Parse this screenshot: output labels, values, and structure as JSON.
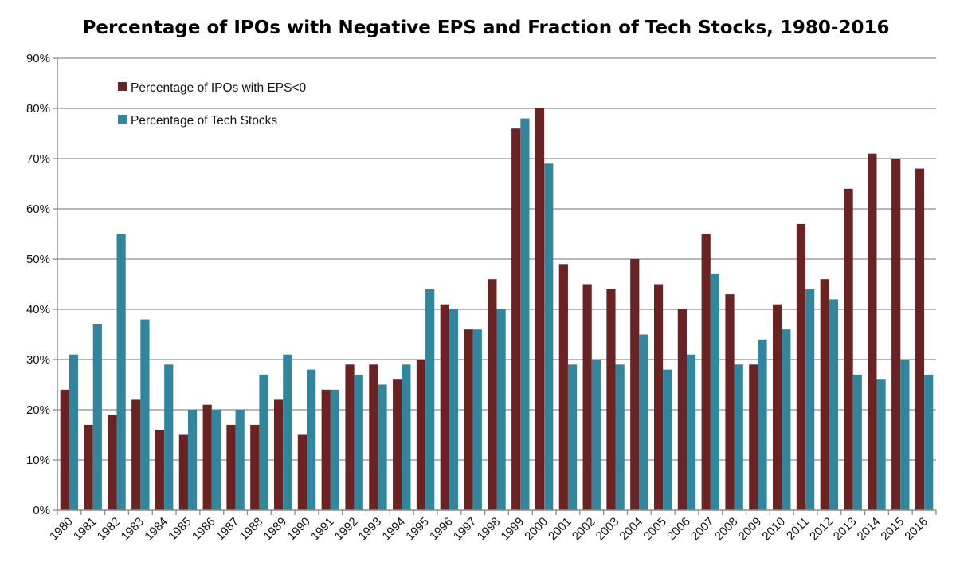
{
  "chart_data": {
    "type": "bar",
    "title": "Percentage of IPOs with Negative EPS and Fraction of Tech Stocks, 1980-2016",
    "xlabel": "",
    "ylabel": "",
    "ylim": [
      0,
      90
    ],
    "y_ticks": [
      0,
      10,
      20,
      30,
      40,
      50,
      60,
      70,
      80,
      90
    ],
    "y_tick_labels": [
      "0%",
      "10%",
      "20%",
      "30%",
      "40%",
      "50%",
      "60%",
      "70%",
      "80%",
      "90%"
    ],
    "grid": true,
    "legend_position": "top-left",
    "categories": [
      "1980",
      "1981",
      "1982",
      "1983",
      "1984",
      "1985",
      "1986",
      "1987",
      "1988",
      "1989",
      "1990",
      "1991",
      "1992",
      "1993",
      "1994",
      "1995",
      "1996",
      "1997",
      "1998",
      "1999",
      "2000",
      "2001",
      "2002",
      "2003",
      "2004",
      "2005",
      "2006",
      "2007",
      "2008",
      "2009",
      "2010",
      "2011",
      "2012",
      "2013",
      "2014",
      "2015",
      "2016"
    ],
    "series": [
      {
        "name": "Percentage of IPOs with EPS<0",
        "color": "#6b2222",
        "values": [
          24,
          17,
          19,
          22,
          16,
          15,
          21,
          17,
          17,
          22,
          15,
          24,
          29,
          29,
          26,
          30,
          41,
          36,
          46,
          76,
          80,
          49,
          45,
          44,
          50,
          45,
          40,
          55,
          43,
          29,
          41,
          57,
          46,
          64,
          71,
          70,
          68
        ]
      },
      {
        "name": "Percentage of Tech Stocks",
        "color": "#31859c",
        "values": [
          31,
          37,
          55,
          38,
          29,
          20,
          20,
          20,
          27,
          31,
          28,
          24,
          27,
          25,
          29,
          44,
          40,
          36,
          40,
          78,
          69,
          29,
          30,
          29,
          35,
          28,
          31,
          47,
          29,
          34,
          36,
          44,
          42,
          27,
          26,
          30,
          27
        ]
      }
    ]
  }
}
